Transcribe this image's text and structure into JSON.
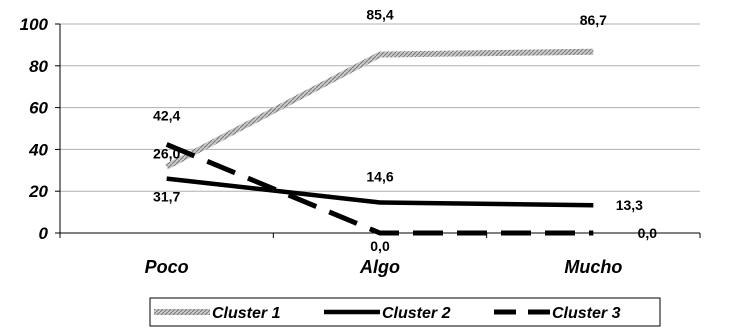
{
  "chart_data": {
    "type": "line",
    "categories": [
      "Poco",
      "Algo",
      "Mucho"
    ],
    "ylim": [
      0,
      100
    ],
    "yticks": [
      "0",
      "20",
      "40",
      "60",
      "80",
      "100"
    ],
    "grid": true,
    "legend_position": "bottom",
    "series": [
      {
        "name": "Cluster 1",
        "values": [
          31.7,
          85.4,
          86.7
        ],
        "labels": [
          "31,7",
          "85,4",
          "86,7"
        ],
        "style": "hatched-gray",
        "color": "#a0a0a0"
      },
      {
        "name": "Cluster 2",
        "values": [
          26.0,
          14.6,
          13.3
        ],
        "labels": [
          "26,0",
          "14,6",
          "13,3"
        ],
        "style": "solid",
        "color": "#000000"
      },
      {
        "name": "Cluster 3",
        "values": [
          42.4,
          0.0,
          0.0
        ],
        "labels": [
          "42,4",
          "0,0",
          "0,0"
        ],
        "style": "dashed",
        "color": "#000000"
      }
    ]
  }
}
